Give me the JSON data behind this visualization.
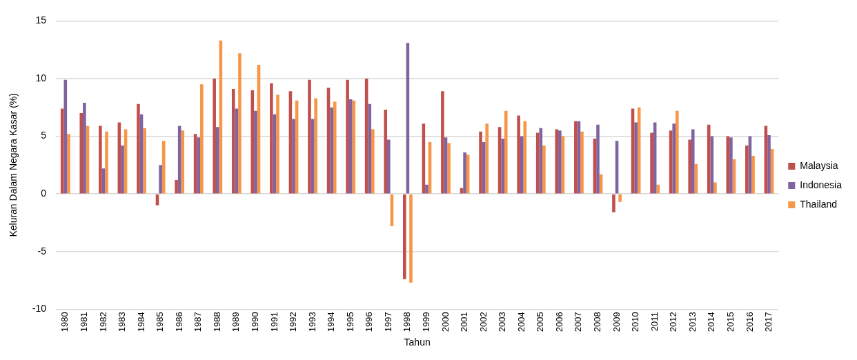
{
  "chart_data": {
    "type": "bar",
    "xlabel": "Tahun",
    "ylabel": "Keluran Dalam Negara Kasar (%)",
    "categories": [
      "1980",
      "1981",
      "1982",
      "1983",
      "1984",
      "1985",
      "1986",
      "1987",
      "1988",
      "1989",
      "1990",
      "1991",
      "1992",
      "1993",
      "1994",
      "1995",
      "1996",
      "1997",
      "1998",
      "1999",
      "2000",
      "2001",
      "2002",
      "2003",
      "2004",
      "2005",
      "2006",
      "2007",
      "2008",
      "2009",
      "2010",
      "2011",
      "2012",
      "2013",
      "2014",
      "2015",
      "2016",
      "2017"
    ],
    "series": [
      {
        "name": "Malaysia",
        "color": "#c0504d",
        "values": [
          7.4,
          7.0,
          5.9,
          6.2,
          7.8,
          -1.0,
          1.2,
          5.2,
          10.0,
          9.1,
          9.0,
          9.6,
          8.9,
          9.9,
          9.2,
          9.9,
          10.0,
          7.3,
          -7.4,
          6.1,
          8.9,
          0.5,
          5.4,
          5.8,
          6.8,
          5.3,
          5.6,
          6.3,
          4.8,
          -1.6,
          7.4,
          5.3,
          5.5,
          4.7,
          6.0,
          5.0,
          4.2,
          5.9
        ]
      },
      {
        "name": "Indonesia",
        "color": "#8064a2",
        "values": [
          9.9,
          7.9,
          2.2,
          4.2,
          6.9,
          2.5,
          5.9,
          4.9,
          5.8,
          7.4,
          7.2,
          6.9,
          6.5,
          6.5,
          7.5,
          8.2,
          7.8,
          4.7,
          13.1,
          0.8,
          4.9,
          3.6,
          4.5,
          4.8,
          5.0,
          5.7,
          5.5,
          6.3,
          6.0,
          4.6,
          6.2,
          6.2,
          6.1,
          5.6,
          5.0,
          4.9,
          5.0,
          5.1
        ]
      },
      {
        "name": "Thailand",
        "color": "#f79646",
        "values": [
          5.2,
          5.9,
          5.4,
          5.6,
          5.7,
          4.6,
          5.5,
          9.5,
          13.3,
          12.2,
          11.2,
          8.6,
          8.1,
          8.3,
          8.0,
          8.1,
          5.6,
          -2.8,
          -7.7,
          4.5,
          4.4,
          3.4,
          6.1,
          7.2,
          6.3,
          4.2,
          5.0,
          5.4,
          1.7,
          -0.7,
          7.5,
          0.8,
          7.2,
          2.6,
          1.0,
          3.0,
          3.3,
          3.9
        ]
      }
    ],
    "ylim": [
      -10,
      15
    ],
    "yticks": [
      -10,
      -5,
      0,
      5,
      10,
      15
    ],
    "grid": "y",
    "legend": "right"
  }
}
